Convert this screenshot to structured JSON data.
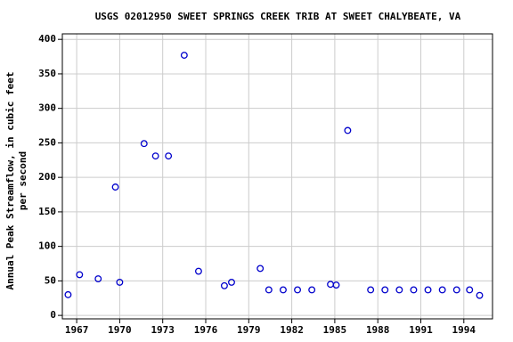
{
  "chart_data": {
    "type": "scatter",
    "title": "USGS 02012950 SWEET SPRINGS CREEK TRIB AT SWEET CHALYBEATE, VA",
    "ylabel": [
      "Annual Peak Streamflow, in cubic feet",
      "per second"
    ],
    "x": [
      1966.4,
      1967.2,
      1968.5,
      1969.7,
      1970.0,
      1971.7,
      1972.5,
      1973.4,
      1974.5,
      1975.5,
      1977.3,
      1977.8,
      1979.8,
      1980.4,
      1981.4,
      1982.4,
      1983.4,
      1984.7,
      1985.1,
      1985.9,
      1987.5,
      1988.5,
      1989.5,
      1990.5,
      1991.5,
      1992.5,
      1993.5,
      1994.4,
      1995.1
    ],
    "series": [
      {
        "color": "#0000cc",
        "values": [
          30,
          59,
          53,
          186,
          48,
          249,
          231,
          231,
          377,
          64,
          43,
          48,
          68,
          37,
          37,
          37,
          37,
          45,
          44,
          268,
          37,
          37,
          37,
          37,
          37,
          37,
          37,
          37,
          29
        ]
      }
    ],
    "xlim": [
      1966,
      1996
    ],
    "xticks": [
      1967,
      1970,
      1973,
      1976,
      1979,
      1982,
      1985,
      1988,
      1991,
      1994
    ],
    "ylim": [
      -5,
      408
    ],
    "yticks": [
      0,
      50,
      100,
      150,
      200,
      250,
      300,
      350,
      400
    ],
    "grid": true
  }
}
